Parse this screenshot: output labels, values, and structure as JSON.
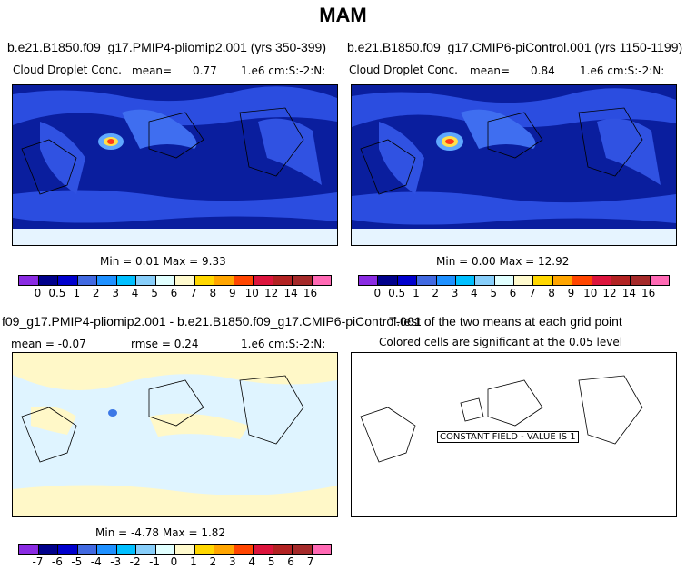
{
  "figure_title": "MAM",
  "panels": {
    "top_left": {
      "title": "b.e21.B1850.f09_g17.PMIP4-pliomip2.001 (yrs 350-399)",
      "variable": "Cloud Droplet Conc.",
      "mean_label": "mean=",
      "mean_value": "0.77",
      "units": "1.e6 cm:S:-2:N:",
      "stats": "Min =   0.01 Max =   9.33"
    },
    "top_right": {
      "title": "b.e21.B1850.f09_g17.CMIP6-piControl.001 (yrs 1150-1199)",
      "variable": "Cloud Droplet Conc.",
      "mean_label": "mean=",
      "mean_value": "0.84",
      "units": "1.e6 cm:S:-2:N:",
      "stats": "Min =   0.00 Max =  12.92"
    },
    "bottom_left": {
      "title": "f09_g17.PMIP4-pliomip2.001 - b.e21.B1850.f09_g17.CMIP6-piControl.001",
      "mean_text": "mean = -0.07",
      "rmse_text": "rmse =   0.24",
      "units": "1.e6 cm:S:-2:N:",
      "stats": "Min =  -4.78 Max =   1.82"
    },
    "bottom_right": {
      "title": "T-test of the two means at each grid point",
      "subtitle": "Colored cells are significant at the 0.05 level",
      "constant_label": "CONSTANT FIELD - VALUE IS 1"
    }
  },
  "colorbars": {
    "abs": {
      "colors": [
        "#8a2be2",
        "#00008b",
        "#0000cd",
        "#4169e1",
        "#1e90ff",
        "#00bfff",
        "#87cefa",
        "#e0ffff",
        "#fffacd",
        "#ffd700",
        "#ffa500",
        "#ff4500",
        "#dc143c",
        "#b22222",
        "#a52a2a",
        "#ff69b4"
      ],
      "labels": [
        "0",
        "0.5",
        "1",
        "2",
        "3",
        "4",
        "5",
        "6",
        "7",
        "8",
        "9",
        "10",
        "12",
        "14",
        "16"
      ]
    },
    "diff": {
      "colors": [
        "#8a2be2",
        "#00008b",
        "#0000cd",
        "#4169e1",
        "#1e90ff",
        "#00bfff",
        "#87cefa",
        "#e0ffff",
        "#fffacd",
        "#ffd700",
        "#ffa500",
        "#ff4500",
        "#dc143c",
        "#b22222",
        "#a52a2a",
        "#ff69b4"
      ],
      "labels": [
        "-7",
        "-6",
        "-5",
        "-4",
        "-3",
        "-2",
        "-1",
        "0",
        "1",
        "2",
        "3",
        "4",
        "5",
        "6",
        "7"
      ]
    }
  }
}
